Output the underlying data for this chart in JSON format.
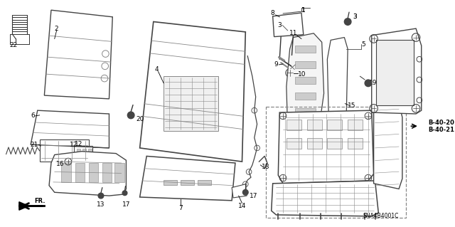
{
  "background_color": "#ffffff",
  "diagram_code": "SNA4B4001C",
  "ref_codes": [
    "B-40-20",
    "B-40-21"
  ],
  "line_color": "#333333",
  "light_gray": "#cccccc",
  "mid_gray": "#888888",
  "dark_gray": "#444444"
}
